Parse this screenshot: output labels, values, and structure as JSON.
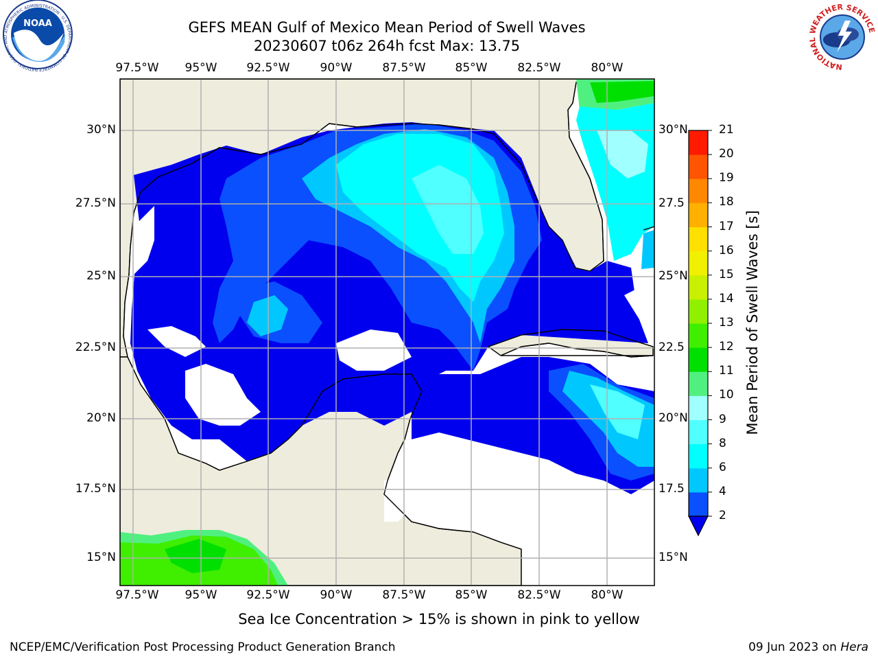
{
  "title": {
    "line1": "GEFS MEAN Gulf of Mexico Mean Period of Swell Waves",
    "line2": "20230607 t06z 264h fcst   Max: 13.75"
  },
  "map": {
    "lon_ticks": [
      "97.5°W",
      "95°W",
      "92.5°W",
      "90°W",
      "87.5°W",
      "85°W",
      "82.5°W",
      "80°W"
    ],
    "lat_ticks_left": [
      "30°N",
      "27.5°N",
      "25°N",
      "22.5°N",
      "20°N",
      "17.5°N",
      "15°N"
    ],
    "lat_ticks_right": [
      "30°N",
      "27.5",
      "25°N",
      "22.5",
      "20°N",
      "17.5",
      "15°N"
    ],
    "land_color": "#eeecdc",
    "grid_color": "#b0b0b0"
  },
  "colorbar": {
    "label": "Mean Period of Swell Waves [s]",
    "ticks": [
      "2",
      "4",
      "6",
      "8",
      "9",
      "10",
      "11",
      "12",
      "13",
      "14",
      "15",
      "16",
      "17",
      "18",
      "19",
      "20",
      "21"
    ],
    "colors": [
      "#0a50ff",
      "#00c8ff",
      "#00ffff",
      "#50ffff",
      "#a0ffff",
      "#50f080",
      "#00e000",
      "#40ee00",
      "#90f000",
      "#c8f000",
      "#f0f000",
      "#ffe000",
      "#ffb000",
      "#ff8800",
      "#ff5500",
      "#ff1a00"
    ],
    "extend_color": "#0000ee"
  },
  "subtitle": "Sea Ice Concentration > 15% is shown in pink to yellow",
  "footer": {
    "left": "NCEP/EMC/Verification Post Processing Product Generation Branch",
    "right_date": "09 Jun 2023 on ",
    "right_host": "Hera"
  },
  "logos": {
    "noaa_text": "NOAA",
    "noaa_ring": "NATIONAL OCEANIC AND ATMOSPHERIC ADMINISTRATION · U.S. DEPARTMENT OF COMMERCE",
    "nws_ring": "NATIONAL WEATHER SERVICE"
  }
}
